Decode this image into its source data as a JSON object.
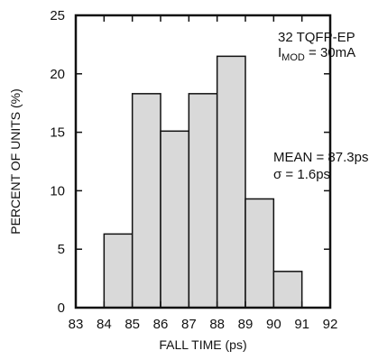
{
  "chart_data": {
    "type": "bar",
    "bin_edges": [
      84,
      85,
      86,
      87,
      88,
      89,
      90,
      91
    ],
    "values": [
      6.3,
      18.3,
      15.1,
      18.3,
      21.5,
      9.3,
      3.1
    ],
    "xlabel": "FALL TIME (ps)",
    "ylabel": "PERCENT OF UNITS (%)",
    "xlim": [
      83,
      92
    ],
    "ylim": [
      0,
      25
    ],
    "x_ticks": [
      "83",
      "84",
      "85",
      "86",
      "87",
      "88",
      "89",
      "90",
      "91",
      "92"
    ],
    "y_ticks": [
      "0",
      "5",
      "10",
      "15",
      "20",
      "25"
    ],
    "grid": false,
    "bar_fill": "#d9d9d9",
    "bar_stroke": "#111111",
    "annotations": {
      "package": "32 TQFP-EP",
      "imod_main": "I",
      "imod_sub": "MOD",
      "imod_value": " = 30mA",
      "mean": "MEAN = 87.3ps",
      "sigma_symbol": "σ",
      "sigma_value": " = 1.6ps"
    }
  }
}
